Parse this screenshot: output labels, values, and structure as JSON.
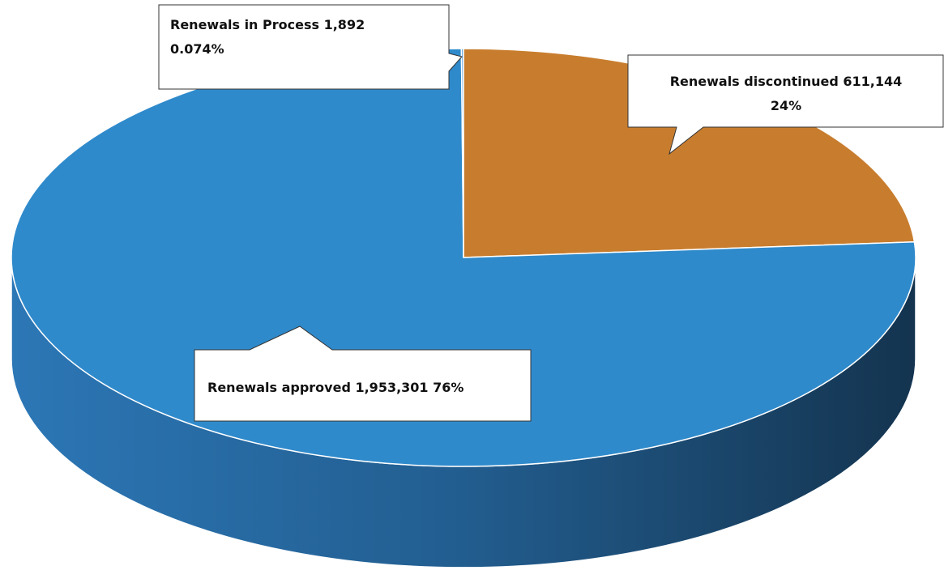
{
  "chart_data": {
    "type": "pie",
    "categories": [
      "Renewals discontinued",
      "Renewals approved",
      "Renewals in Process"
    ],
    "values": [
      611144,
      1953301,
      1892
    ],
    "value_labels": [
      "611,144",
      "1,953,301",
      "1,892"
    ],
    "percents": [
      24,
      76,
      0.074
    ],
    "percent_labels": [
      "24%",
      "76%",
      "0.074%"
    ],
    "colors": [
      "#c87d2e",
      "#2f8acb",
      "#5b9bd5"
    ]
  }
}
